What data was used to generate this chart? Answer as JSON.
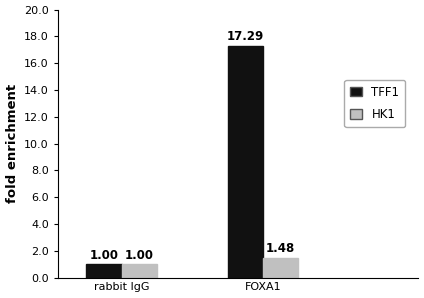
{
  "categories": [
    "rabbit IgG",
    "FOXA1"
  ],
  "series": {
    "TFF1": [
      1.0,
      17.29
    ],
    "HK1": [
      1.0,
      1.48
    ]
  },
  "colors": {
    "TFF1": "#111111",
    "HK1": "#c0c0c0"
  },
  "bar_labels": {
    "TFF1": [
      "1.00",
      "17.29"
    ],
    "HK1": [
      "1.00",
      "1.48"
    ]
  },
  "ylabel": "fold enrichment",
  "ylim": [
    0,
    20.0
  ],
  "yticks": [
    0.0,
    2.0,
    4.0,
    6.0,
    8.0,
    10.0,
    12.0,
    14.0,
    16.0,
    18.0,
    20.0
  ],
  "bar_width": 0.25,
  "background_color": "#ffffff",
  "legend_labels": [
    "TFF1",
    "HK1"
  ],
  "label_fontsize": 8.5,
  "tick_fontsize": 8,
  "ylabel_fontsize": 9.5
}
